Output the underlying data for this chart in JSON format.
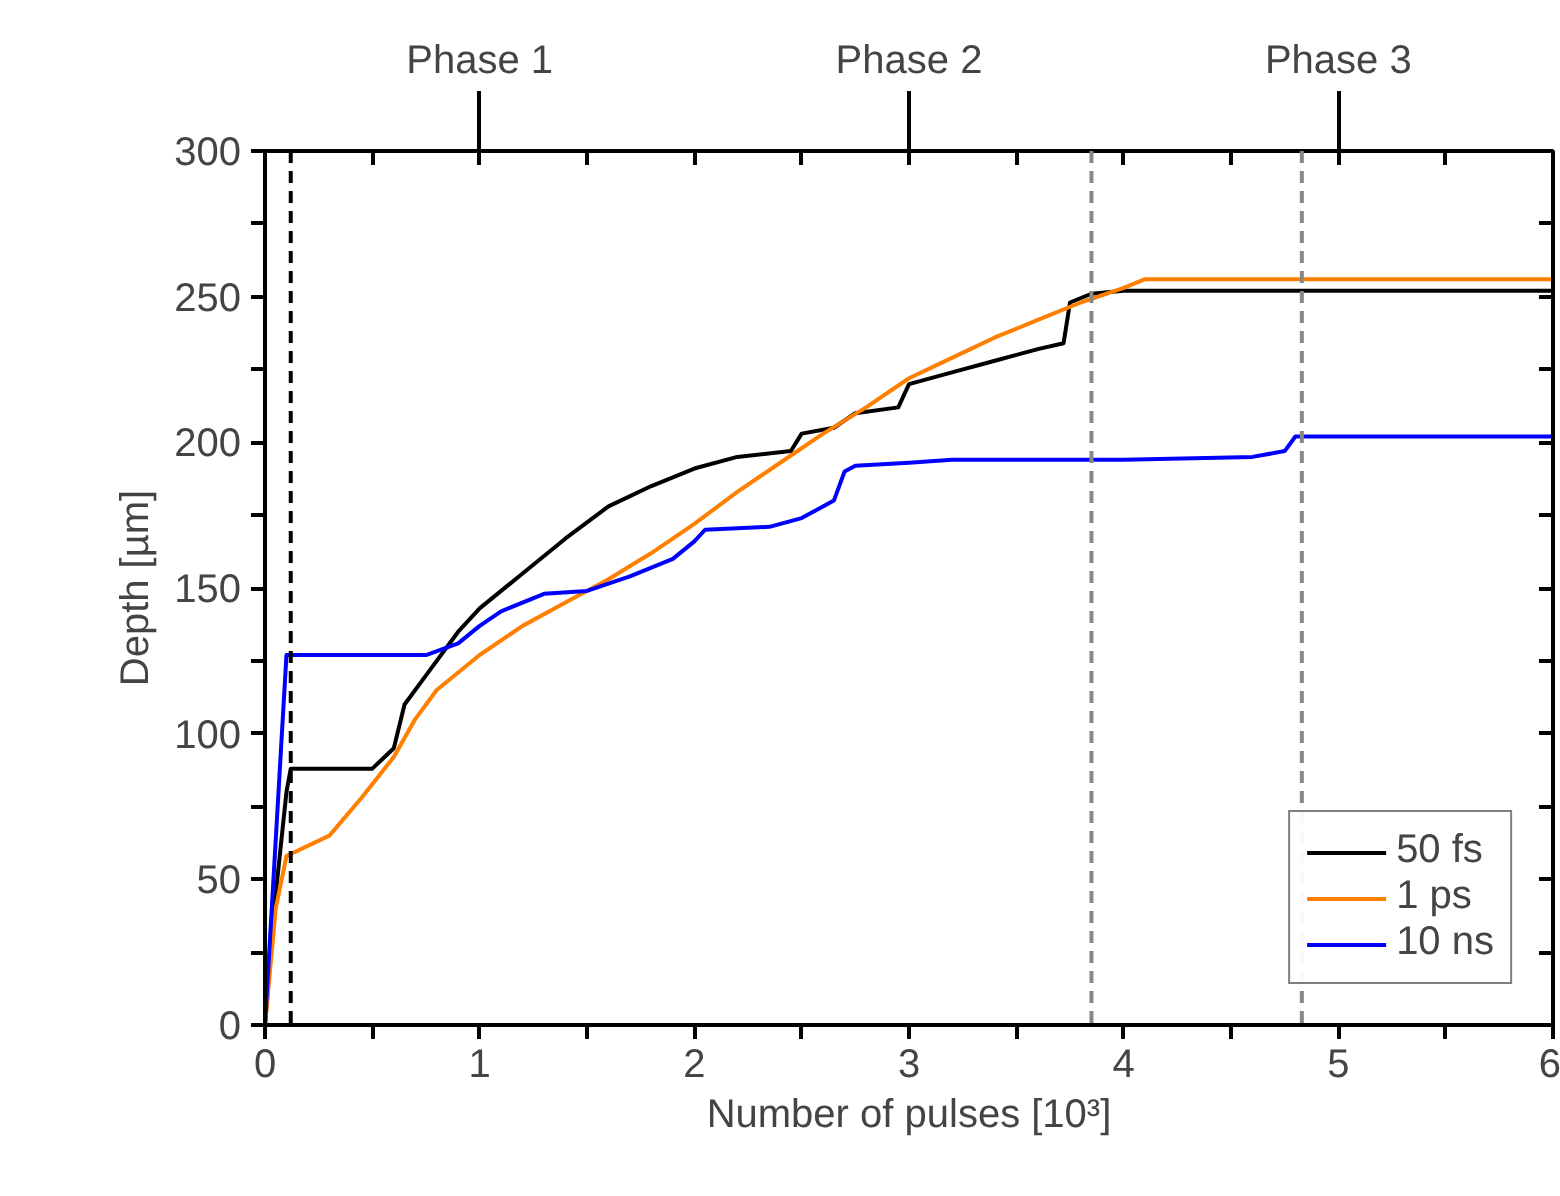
{
  "chart_data": {
    "type": "line",
    "xlabel": "Number of pulses [10³]",
    "ylabel": "Depth [µm]",
    "xlim": [
      0,
      6
    ],
    "ylim": [
      0,
      300
    ],
    "xticks": [
      0,
      {
        "value": 0.5,
        "label": null
      },
      1,
      {
        "value": 1.5,
        "label": null
      },
      2,
      {
        "value": 2.5,
        "label": null
      },
      3,
      {
        "value": 3.5,
        "label": null
      },
      4,
      {
        "value": 4.5,
        "label": null
      },
      5,
      {
        "value": 5.5,
        "label": null
      },
      6
    ],
    "yticks": [
      0,
      {
        "value": 25,
        "label": null
      },
      50,
      {
        "value": 75,
        "label": null
      },
      100,
      {
        "value": 125,
        "label": null
      },
      150,
      {
        "value": 175,
        "label": null
      },
      200,
      {
        "value": 225,
        "label": null
      },
      250,
      {
        "value": 275,
        "label": null
      },
      300
    ],
    "grid": false,
    "legend": "bottom right",
    "line_style": "solid",
    "marker": "none",
    "series": [
      {
        "name": "50 fs",
        "color": "#000000",
        "x": [
          0,
          0.05,
          0.1,
          0.12,
          0.5,
          0.6,
          0.65,
          0.75,
          0.9,
          1.0,
          1.2,
          1.4,
          1.6,
          1.8,
          2.0,
          2.2,
          2.45,
          2.5,
          2.65,
          2.75,
          2.95,
          3.0,
          3.2,
          3.4,
          3.6,
          3.72,
          3.75,
          3.85,
          4.0,
          4.2,
          6
        ],
        "values": [
          0,
          45,
          80,
          88,
          88,
          95,
          110,
          120,
          135,
          143,
          155,
          167,
          178,
          185,
          191,
          195,
          197,
          203,
          205,
          210,
          212,
          220,
          224,
          228,
          232,
          234,
          248,
          251,
          252,
          252,
          252
        ]
      },
      {
        "name": "1 ps",
        "color": "#ff7f00",
        "x": [
          0,
          0.05,
          0.1,
          0.3,
          0.45,
          0.6,
          0.7,
          0.8,
          1.0,
          1.2,
          1.4,
          1.6,
          1.8,
          2.0,
          2.2,
          2.4,
          2.6,
          2.8,
          3.0,
          3.2,
          3.4,
          3.6,
          3.8,
          4.0,
          4.1,
          6
        ],
        "values": [
          0,
          40,
          58,
          65,
          78,
          92,
          105,
          115,
          127,
          137,
          145,
          153,
          162,
          172,
          183,
          193,
          203,
          212,
          222,
          229,
          236,
          242,
          248,
          253,
          256,
          256
        ]
      },
      {
        "name": "10 ns",
        "color": "#0000ff",
        "x": [
          0,
          0.1,
          0.75,
          0.9,
          1.0,
          1.1,
          1.3,
          1.5,
          1.7,
          1.9,
          2.0,
          2.05,
          2.35,
          2.5,
          2.65,
          2.7,
          2.75,
          3.0,
          3.2,
          4.0,
          4.6,
          4.75,
          4.8,
          6
        ],
        "values": [
          0,
          127,
          127,
          131,
          137,
          142,
          148,
          149,
          154,
          160,
          166,
          170,
          171,
          174,
          180,
          190,
          192,
          193,
          194,
          194,
          195,
          197,
          202,
          202
        ]
      }
    ],
    "ref_lines": [
      {
        "axis": "x",
        "value": 0.12,
        "color": "#000000",
        "line_style": "dashed"
      },
      {
        "axis": "x",
        "value": 3.85,
        "color": "#888888",
        "line_style": "dashed"
      },
      {
        "axis": "x",
        "value": 4.83,
        "color": "#888888",
        "line_style": "dashed"
      }
    ],
    "annotations": [
      "Phase 1",
      "Phase 2",
      "Phase 3"
    ]
  }
}
